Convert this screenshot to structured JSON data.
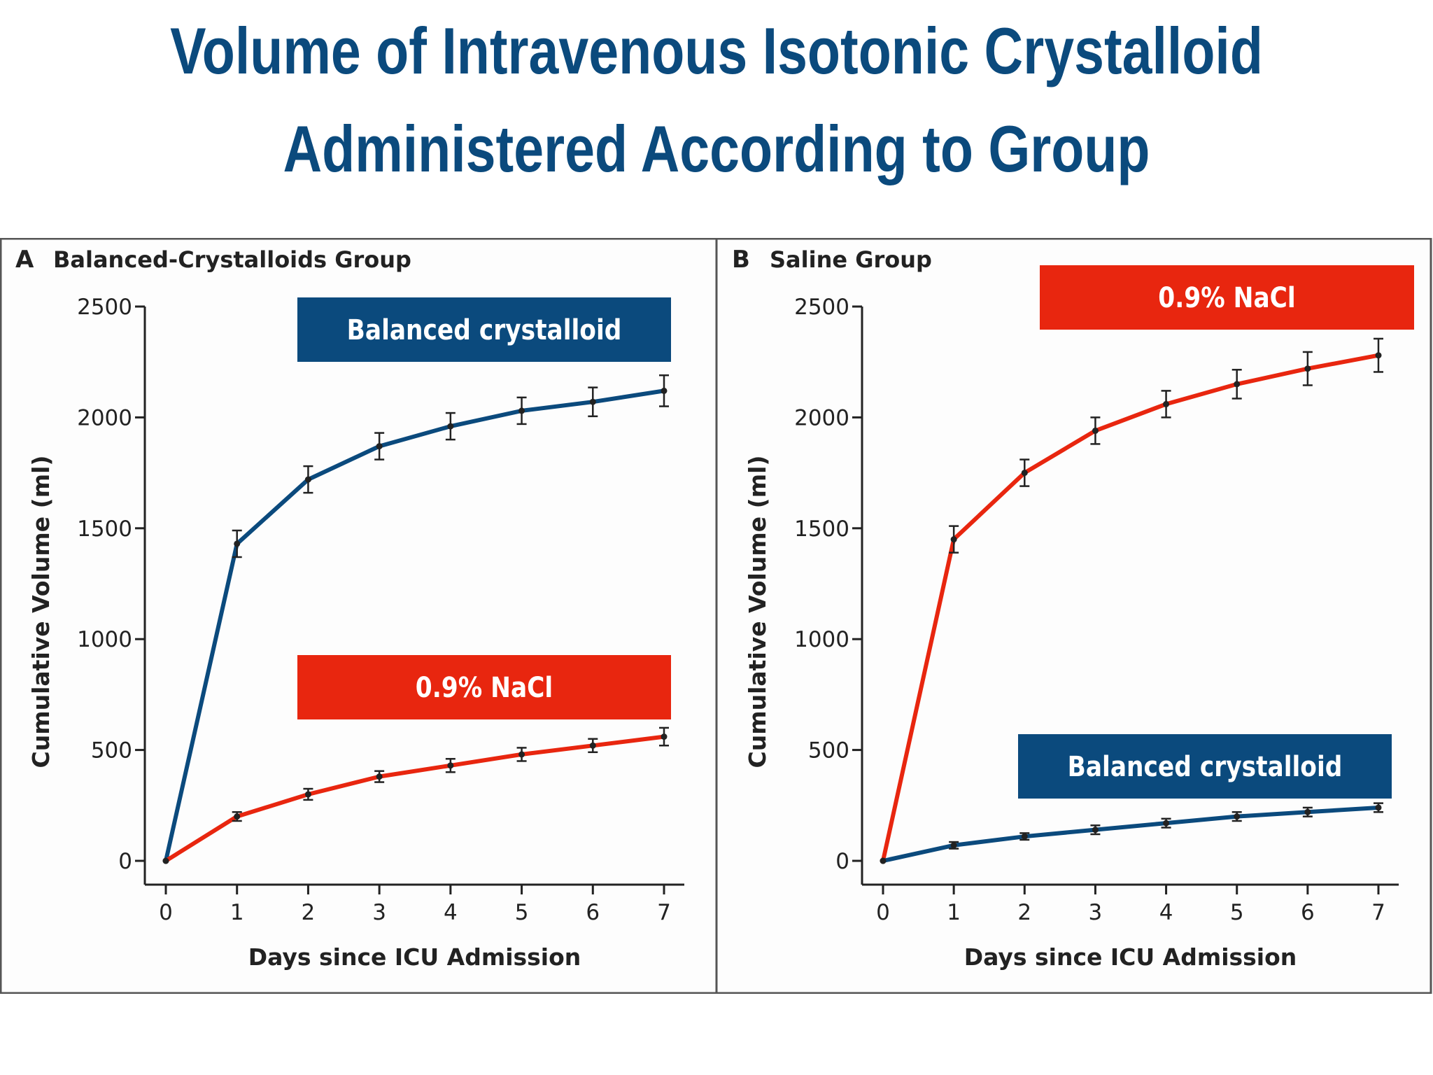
{
  "title": {
    "line1": "Volume of Intravenous Isotonic Crystalloid",
    "line2": "Administered According to Group"
  },
  "colors": {
    "title": "#0b4a7d",
    "balanced": "#0b4a7d",
    "saline": "#e8260f",
    "axis": "#222222"
  },
  "chart_data": [
    {
      "type": "line",
      "panel_letter": "A",
      "title": "Balanced-Crystalloids Group",
      "xlabel": "Days since ICU Admission",
      "ylabel": "Cumulative Volume (ml)",
      "xlim": [
        0,
        7
      ],
      "ylim": [
        0,
        2500
      ],
      "x": [
        0,
        1,
        2,
        3,
        4,
        5,
        6,
        7
      ],
      "yticks": [
        0,
        500,
        1000,
        1500,
        2000,
        2500
      ],
      "series": [
        {
          "name": "Balanced crystalloid",
          "color": "#0b4a7d",
          "values": [
            0,
            1430,
            1720,
            1870,
            1960,
            2030,
            2070,
            2120
          ],
          "errors": [
            0,
            60,
            60,
            60,
            60,
            60,
            65,
            70
          ]
        },
        {
          "name": "0.9% NaCl",
          "color": "#e8260f",
          "values": [
            0,
            200,
            300,
            380,
            430,
            480,
            520,
            560
          ],
          "errors": [
            0,
            20,
            25,
            25,
            30,
            30,
            30,
            40
          ]
        }
      ],
      "legend_placement": "top",
      "grid": false
    },
    {
      "type": "line",
      "panel_letter": "B",
      "title": "Saline Group",
      "xlabel": "Days since ICU Admission",
      "ylabel": "Cumulative Volume (ml)",
      "xlim": [
        0,
        7
      ],
      "ylim": [
        0,
        2500
      ],
      "x": [
        0,
        1,
        2,
        3,
        4,
        5,
        6,
        7
      ],
      "yticks": [
        0,
        500,
        1000,
        1500,
        2000,
        2500
      ],
      "series": [
        {
          "name": "0.9% NaCl",
          "color": "#e8260f",
          "values": [
            0,
            1450,
            1750,
            1940,
            2060,
            2150,
            2220,
            2280
          ],
          "errors": [
            0,
            60,
            60,
            60,
            60,
            65,
            75,
            75
          ]
        },
        {
          "name": "Balanced crystalloid",
          "color": "#0b4a7d",
          "values": [
            0,
            70,
            110,
            140,
            170,
            200,
            220,
            240
          ],
          "errors": [
            0,
            15,
            15,
            20,
            20,
            20,
            20,
            20
          ]
        }
      ],
      "legend_placement": "top-right",
      "grid": false
    }
  ]
}
